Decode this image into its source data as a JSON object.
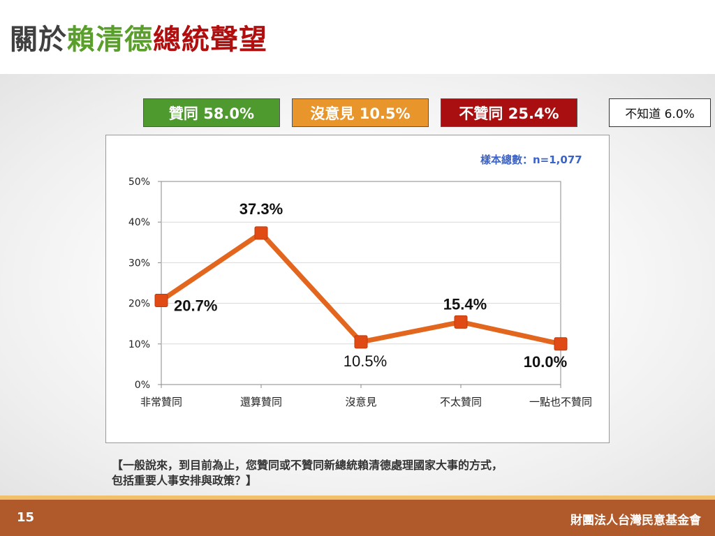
{
  "title": {
    "part1": "關於",
    "part2": "賴清德",
    "part3": "總統聲望",
    "color1": "#404040",
    "color2": "#5a9e2b",
    "color3": "#b00f0f"
  },
  "summary": {
    "agree": "贊同 58.0%",
    "neutral": "沒意見 10.5%",
    "disagree": "不贊同 25.4%",
    "unknown": "不知道 6.0%"
  },
  "sample_note": "樣本總數：n=1,077",
  "question": {
    "line1": "【一般說來，到目前為止，您贊同或不贊同新總統賴清德處理國家大事的方式，",
    "line2": "包括重要人事安排與政策？】"
  },
  "footer": {
    "page_number": "15",
    "org": "財團法人台灣民意基金會"
  },
  "chart_data": {
    "type": "line",
    "categories": [
      "非常贊同",
      "還算贊同",
      "沒意見",
      "不太贊同",
      "一點也不贊同"
    ],
    "values": [
      20.7,
      37.3,
      10.5,
      15.4,
      10.0
    ],
    "data_labels": [
      "20.7%",
      "37.3%",
      "10.5%",
      "15.4%",
      "10.0%"
    ],
    "yticks": [
      "0%",
      "10%",
      "20%",
      "30%",
      "40%",
      "50%"
    ],
    "ylim": [
      0,
      50
    ],
    "grid": true,
    "line_color": "#e3661f",
    "marker_color": "#e04a14"
  }
}
